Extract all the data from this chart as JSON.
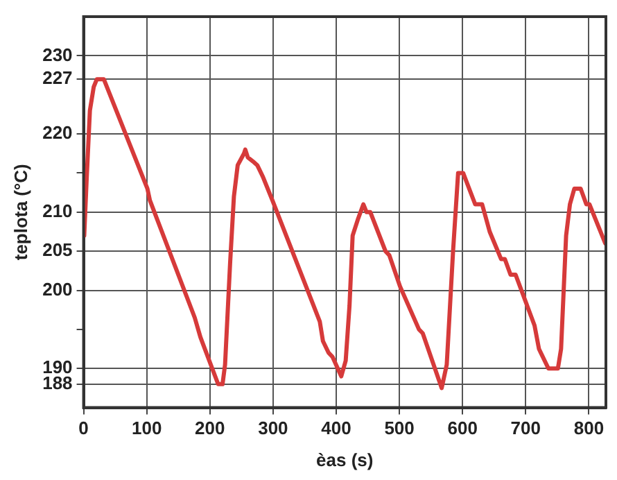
{
  "chart_data": {
    "type": "line",
    "xlabel": "èas (s)",
    "ylabel": "teplota (°C)",
    "xlim": [
      0,
      827
    ],
    "ylim": [
      185,
      235
    ],
    "xticks": [
      0,
      100,
      200,
      300,
      400,
      500,
      600,
      700,
      800
    ],
    "yticks": [
      188,
      190,
      {
        "value": 195,
        "label": null
      },
      200,
      205,
      210,
      {
        "value": 215,
        "label": null
      },
      220,
      227,
      230
    ],
    "grid": true,
    "marker": "none",
    "line_style": "solid",
    "series": [
      {
        "color": "#d63a3a",
        "x": [
          1,
          5,
          10,
          16,
          21,
          32,
          101,
          105,
          176,
          185,
          213,
          220,
          224,
          232,
          238,
          244,
          254,
          256,
          260,
          268,
          275,
          284,
          299,
          374,
          379,
          388,
          394,
          408,
          415,
          421,
          426,
          434,
          443,
          448,
          454,
          478,
          484,
          501,
          531,
          537,
          567,
          575,
          585,
          593,
          596,
          601,
          620,
          631,
          643,
          661,
          667,
          676,
          684,
          714,
          721,
          736,
          751,
          756,
          764,
          770,
          777,
          787,
          796,
          801,
          826
        ],
        "values": [
          207,
          214.5,
          223,
          226,
          227,
          227,
          213,
          211.5,
          196.5,
          194,
          188,
          188,
          190.5,
          203.5,
          212,
          216,
          217.5,
          218,
          217,
          216.5,
          216,
          214.5,
          211.5,
          196,
          193.5,
          192,
          191.5,
          189,
          191,
          198,
          207,
          209,
          211,
          210,
          210,
          205,
          204.5,
          200.5,
          195,
          194.5,
          187.5,
          190.5,
          205,
          215,
          215,
          215,
          211,
          211,
          207.5,
          204,
          204,
          202,
          202,
          195.5,
          192.5,
          190,
          190,
          192.5,
          207,
          211,
          213,
          213,
          211,
          211,
          206
        ]
      }
    ]
  }
}
